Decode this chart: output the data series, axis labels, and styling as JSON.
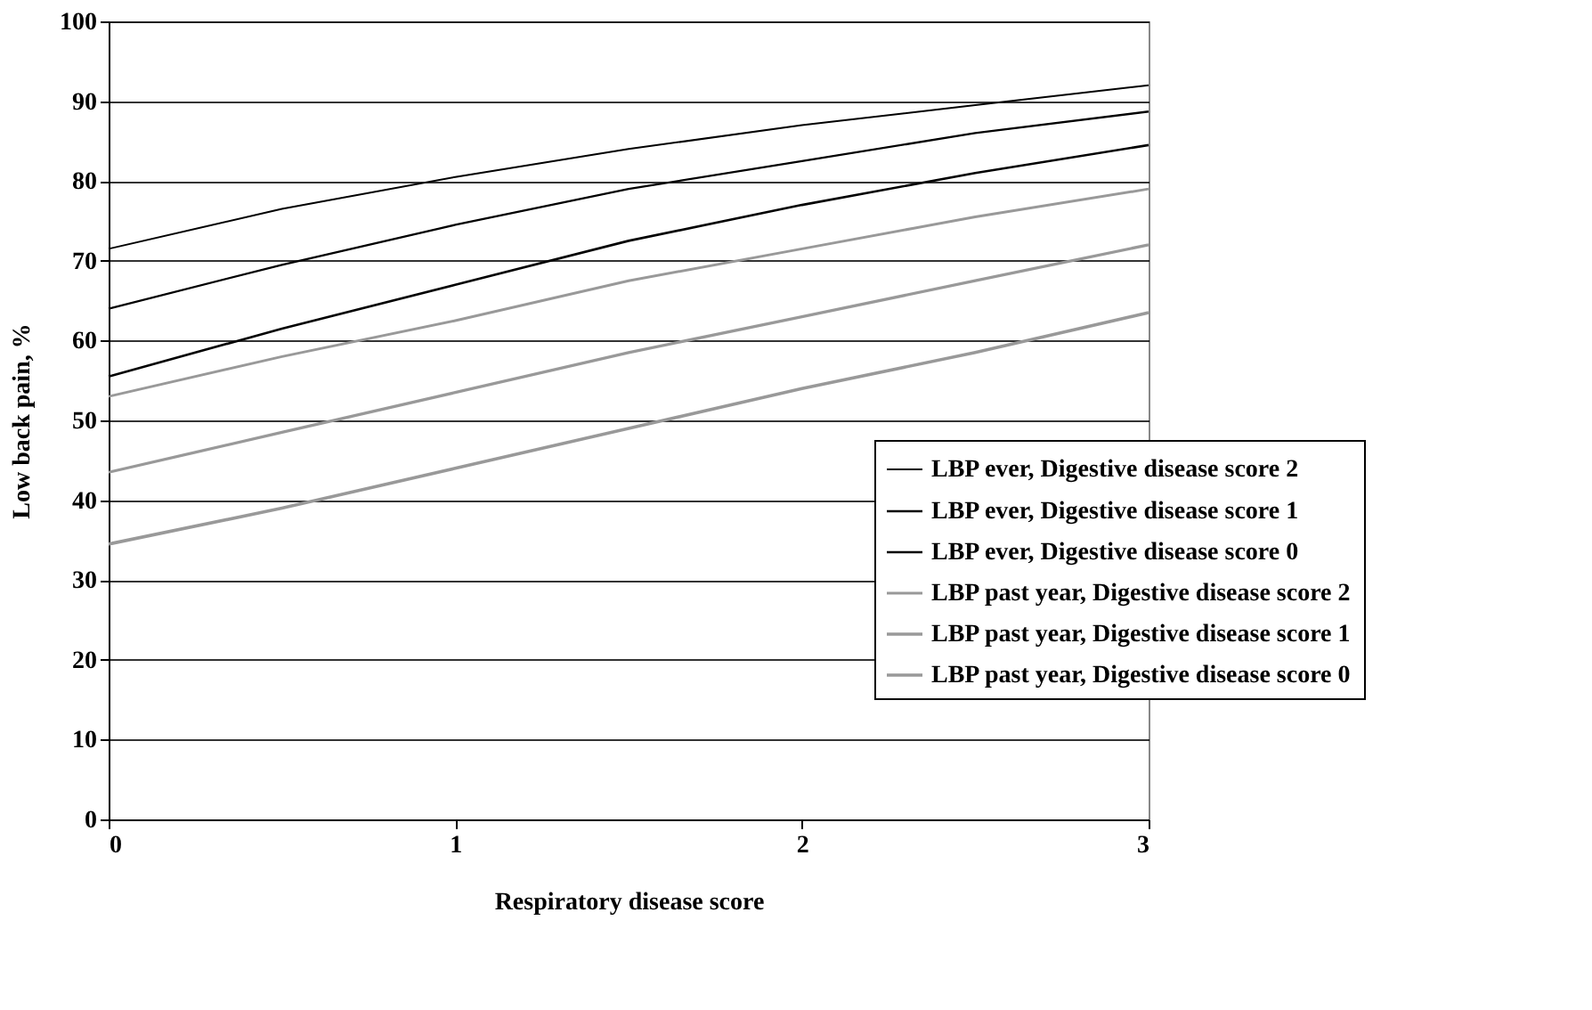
{
  "chart_data": {
    "type": "line",
    "xlabel": "Respiratory disease score",
    "ylabel": "Low back pain, %",
    "x": [
      0,
      0.5,
      1,
      1.5,
      2,
      2.5,
      3
    ],
    "xlim": [
      0,
      3
    ],
    "xticks": [
      0,
      1,
      2,
      3
    ],
    "ylim": [
      0,
      100
    ],
    "yticks": [
      0,
      10,
      20,
      30,
      40,
      50,
      60,
      70,
      80,
      90,
      100
    ],
    "grid": "y",
    "legend": "right",
    "line_style": "solid",
    "marker": "none",
    "series": [
      {
        "name": "LBP ever, Digestive disease score 2",
        "color": "#000000",
        "values": [
          71.5,
          76.5,
          80.5,
          84,
          87,
          89.5,
          92
        ]
      },
      {
        "name": "LBP ever, Digestive disease score 1",
        "color": "#000000",
        "values": [
          64,
          69.5,
          74.5,
          79,
          82.5,
          86,
          88.7
        ]
      },
      {
        "name": "LBP ever, Digestive disease score 0",
        "color": "#000000",
        "values": [
          55.5,
          61.5,
          67,
          72.5,
          77,
          81,
          84.5
        ]
      },
      {
        "name": "LBP past year, Digestive disease score 2",
        "color": "#999999",
        "values": [
          53,
          58,
          62.5,
          67.5,
          71.5,
          75.5,
          79
        ]
      },
      {
        "name": "LBP past year, Digestive disease score 1",
        "color": "#999999",
        "values": [
          43.5,
          48.5,
          53.5,
          58.5,
          63,
          67.5,
          72
        ]
      },
      {
        "name": "LBP past year, Digestive disease score 0",
        "color": "#999999",
        "values": [
          34.5,
          39,
          44,
          49,
          54,
          58.5,
          63.5
        ]
      }
    ]
  }
}
